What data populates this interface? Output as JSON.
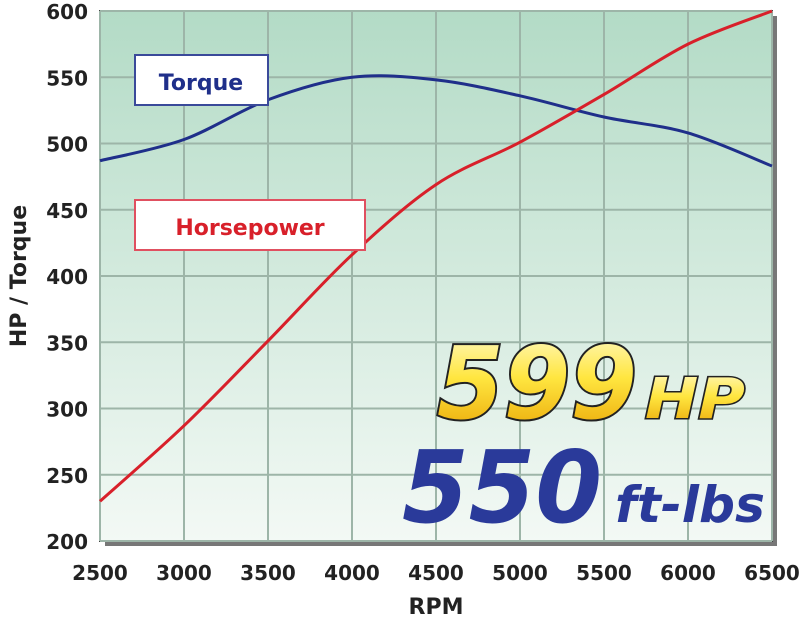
{
  "chart_data": {
    "type": "line",
    "title": "",
    "xlabel": "RPM",
    "ylabel": "HP / Torque",
    "xlim": [
      2500,
      6500
    ],
    "ylim": [
      200,
      600
    ],
    "x": [
      2500,
      3000,
      3500,
      4000,
      4500,
      5000,
      5500,
      6000,
      6500
    ],
    "xticks": [
      "2500",
      "3000",
      "3500",
      "4000",
      "4500",
      "5000",
      "5500",
      "6000",
      "6500"
    ],
    "yticks": [
      "200",
      "250",
      "300",
      "350",
      "400",
      "450",
      "500",
      "550",
      "600"
    ],
    "grid": true,
    "series": [
      {
        "name": "Torque",
        "color": "#1f2f8a",
        "values": [
          487,
          503,
          533,
          550,
          548,
          536,
          520,
          508,
          483
        ]
      },
      {
        "name": "Horsepower",
        "color": "#d8202a",
        "values": [
          230,
          287,
          351,
          416,
          469,
          501,
          537,
          575,
          600
        ]
      }
    ],
    "annotations": {
      "hp_value": "599",
      "hp_unit": "HP",
      "torque_value": "550",
      "torque_unit": "ft-lbs"
    },
    "colors": {
      "background_top": "#b3dbc6",
      "background_bottom": "#f3f9f5",
      "hp_badge": "#f5c400",
      "torque_badge": "#2a3a9a"
    }
  }
}
